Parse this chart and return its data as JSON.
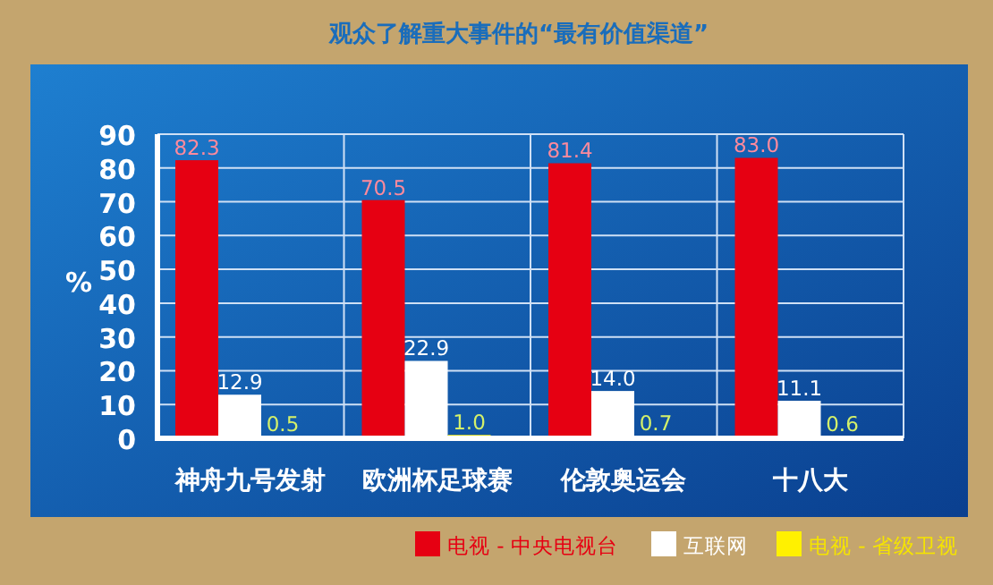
{
  "chart_data": {
    "type": "bar",
    "title": "观众了解重大事件的“最有价值渠道”",
    "ylabel": "%",
    "categories": [
      "神舟九号发射",
      "欧洲杯足球赛",
      "伦敦奥运会",
      "十八大"
    ],
    "series": [
      {
        "name": "电视 - 中央电视台",
        "color": "#e60012",
        "values": [
          82.3,
          70.5,
          81.4,
          83.0
        ],
        "value_labels": [
          "82.3",
          "70.5",
          "81.4",
          "83.0"
        ]
      },
      {
        "name": "互联网",
        "color": "#ffffff",
        "values": [
          12.9,
          22.9,
          14.0,
          11.1
        ],
        "value_labels": [
          "12.9",
          "22.9",
          "14.0",
          "11.1"
        ]
      },
      {
        "name": "电视 - 省级卫视",
        "color": "#fff100",
        "values": [
          0.5,
          1.0,
          0.7,
          0.6
        ],
        "value_labels": [
          "0.5",
          "1.0",
          "0.7",
          "0.6"
        ]
      }
    ],
    "ylim": [
      0,
      90
    ],
    "yticks": [
      0,
      10,
      20,
      30,
      40,
      50,
      60,
      70,
      80,
      90
    ],
    "grid": true,
    "legend": "bottom right"
  }
}
